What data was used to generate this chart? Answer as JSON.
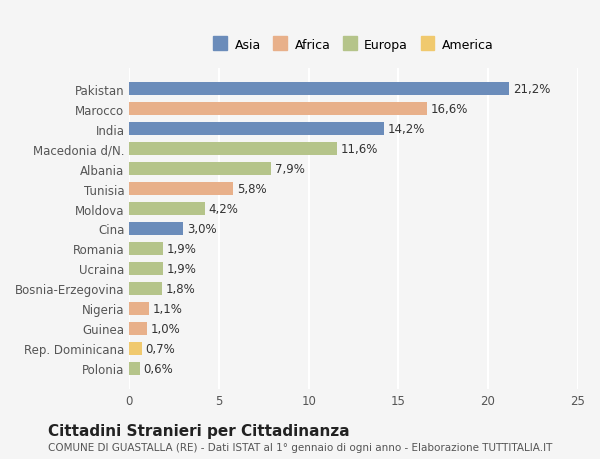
{
  "categories": [
    "Pakistan",
    "Marocco",
    "India",
    "Macedonia d/N.",
    "Albania",
    "Tunisia",
    "Moldova",
    "Cina",
    "Romania",
    "Ucraina",
    "Bosnia-Erzegovina",
    "Nigeria",
    "Guinea",
    "Rep. Dominicana",
    "Polonia"
  ],
  "values": [
    21.2,
    16.6,
    14.2,
    11.6,
    7.9,
    5.8,
    4.2,
    3.0,
    1.9,
    1.9,
    1.8,
    1.1,
    1.0,
    0.7,
    0.6
  ],
  "continents": [
    "Asia",
    "Africa",
    "Asia",
    "Europa",
    "Europa",
    "Africa",
    "Europa",
    "Asia",
    "Europa",
    "Europa",
    "Europa",
    "Africa",
    "Africa",
    "America",
    "Europa"
  ],
  "labels": [
    "21,2%",
    "16,6%",
    "14,2%",
    "11,6%",
    "7,9%",
    "5,8%",
    "4,2%",
    "3,0%",
    "1,9%",
    "1,9%",
    "1,8%",
    "1,1%",
    "1,0%",
    "0,7%",
    "0,6%"
  ],
  "colors": {
    "Asia": "#6b8cba",
    "Africa": "#e8b08a",
    "Europa": "#b5c48a",
    "America": "#f0c96e"
  },
  "legend_labels": [
    "Asia",
    "Africa",
    "Europa",
    "America"
  ],
  "xlim": [
    0,
    25
  ],
  "xticks": [
    0,
    5,
    10,
    15,
    20,
    25
  ],
  "title": "Cittadini Stranieri per Cittadinanza",
  "subtitle": "COMUNE DI GUASTALLA (RE) - Dati ISTAT al 1° gennaio di ogni anno - Elaborazione TUTTITALIA.IT",
  "bg_color": "#f5f5f5",
  "bar_height": 0.65,
  "grid_color": "#ffffff",
  "label_fontsize": 8.5,
  "ytick_fontsize": 8.5,
  "xtick_fontsize": 8.5,
  "title_fontsize": 11,
  "subtitle_fontsize": 7.5
}
